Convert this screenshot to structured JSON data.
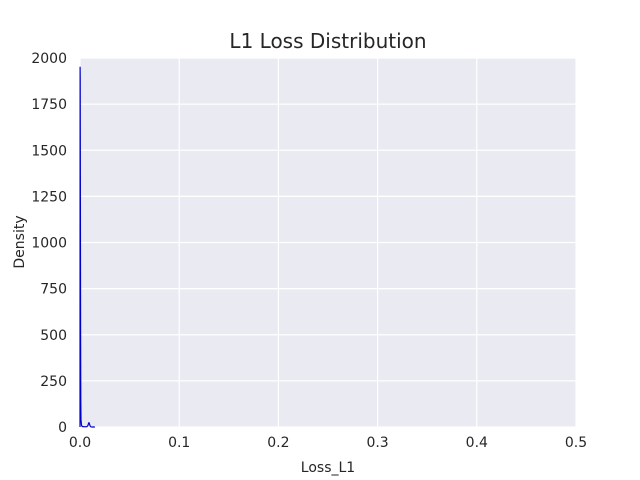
{
  "chart_data": {
    "type": "line",
    "title": "L1 Loss Distribution",
    "xlabel": "Loss_L1",
    "ylabel": "Density",
    "xlim": [
      0,
      0.5
    ],
    "ylim": [
      0,
      2000
    ],
    "xticks": [
      "0.0",
      "0.1",
      "0.2",
      "0.3",
      "0.4",
      "0.5"
    ],
    "yticks": [
      "0",
      "250",
      "500",
      "750",
      "1000",
      "1250",
      "1500",
      "1750",
      "2000"
    ],
    "grid": true,
    "series": [
      {
        "color": "#0000cc",
        "x": [
          0.0,
          0.0001,
          0.0002,
          0.0004,
          0.0006,
          0.0008,
          0.001,
          0.0015,
          0.002,
          0.003,
          0.005,
          0.007,
          0.008,
          0.0085,
          0.009,
          0.0095,
          0.01,
          0.0105,
          0.011,
          0.012,
          0.015
        ],
        "y": [
          0,
          1950,
          1900,
          1200,
          500,
          150,
          40,
          10,
          4,
          2,
          1,
          2,
          8,
          18,
          24,
          18,
          8,
          3,
          1,
          0,
          0
        ]
      }
    ],
    "colors": {
      "background": "#eaeaf2",
      "grid": "#ffffff",
      "line": "#0000cc"
    }
  }
}
